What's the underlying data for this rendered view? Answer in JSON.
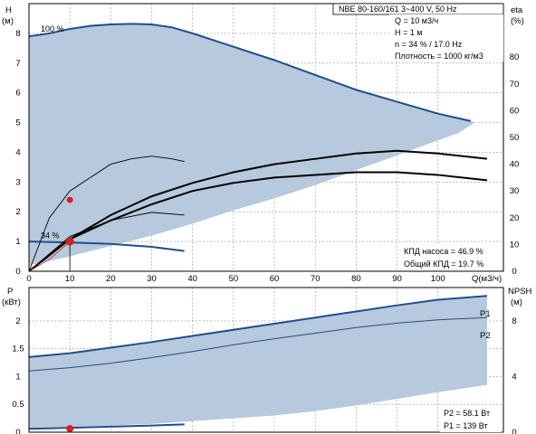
{
  "chart_data": [
    {
      "type": "line",
      "panel": "top",
      "y_label": "H",
      "y_unit": "(м)",
      "y2_label": "eta",
      "y2_unit": "(%)",
      "x_label": "Q(м3/ч)",
      "xlim": [
        0,
        116
      ],
      "ylim": [
        0,
        9
      ],
      "y2lim": [
        0,
        100
      ],
      "x_ticks": [
        "0",
        "10",
        "20",
        "30",
        "40",
        "50",
        "60",
        "70",
        "80",
        "90",
        "100"
      ],
      "x_tick_values": [
        0,
        10,
        20,
        30,
        40,
        50,
        60,
        70,
        80,
        90,
        100
      ],
      "y_ticks": [
        "0",
        "1",
        "2",
        "3",
        "4",
        "5",
        "6",
        "7",
        "8"
      ],
      "y_tick_values": [
        0,
        1,
        2,
        3,
        4,
        5,
        6,
        7,
        8
      ],
      "y2_ticks": [
        "0",
        "10",
        "20",
        "30",
        "40",
        "50",
        "60",
        "70",
        "80"
      ],
      "y2_tick_values": [
        0,
        10,
        20,
        30,
        40,
        50,
        60,
        70,
        80
      ],
      "grid": true,
      "envelope": {
        "upper": [
          [
            0,
            7.9
          ],
          [
            5,
            8.0
          ],
          [
            10,
            8.15
          ],
          [
            15,
            8.25
          ],
          [
            20,
            8.3
          ],
          [
            25,
            8.32
          ],
          [
            30,
            8.3
          ],
          [
            35,
            8.2
          ],
          [
            40,
            8.0
          ],
          [
            50,
            7.55
          ],
          [
            60,
            7.1
          ],
          [
            70,
            6.6
          ],
          [
            80,
            6.1
          ],
          [
            90,
            5.7
          ],
          [
            100,
            5.3
          ],
          [
            108,
            5.05
          ]
        ],
        "lower": [
          [
            109,
            5.0
          ],
          [
            105,
            4.65
          ],
          [
            100,
            4.4
          ],
          [
            90,
            3.9
          ],
          [
            80,
            3.4
          ],
          [
            70,
            2.9
          ],
          [
            60,
            2.45
          ],
          [
            50,
            2.05
          ],
          [
            40,
            1.6
          ],
          [
            30,
            1.2
          ],
          [
            20,
            0.85
          ],
          [
            10,
            0.5
          ],
          [
            5,
            0.35
          ],
          [
            0,
            0.2
          ]
        ]
      },
      "series": [
        {
          "name": "100 %",
          "points": [
            [
              0,
              7.9
            ],
            [
              5,
              8.0
            ],
            [
              10,
              8.15
            ],
            [
              15,
              8.25
            ],
            [
              20,
              8.3
            ],
            [
              25,
              8.32
            ],
            [
              30,
              8.3
            ],
            [
              35,
              8.2
            ],
            [
              40,
              8.0
            ],
            [
              50,
              7.55
            ],
            [
              60,
              7.1
            ],
            [
              70,
              6.6
            ],
            [
              80,
              6.1
            ],
            [
              90,
              5.7
            ],
            [
              100,
              5.3
            ],
            [
              108,
              5.05
            ]
          ],
          "color": "#1f4e8c"
        },
        {
          "name": "34 %",
          "points": [
            [
              0,
              1.0
            ],
            [
              10,
              0.97
            ],
            [
              20,
              0.92
            ],
            [
              30,
              0.82
            ],
            [
              38,
              0.68
            ]
          ],
          "color": "#1f4e8c"
        },
        {
          "name": "",
          "axis": "y2",
          "points": [
            [
              0,
              0
            ],
            [
              5,
              20
            ],
            [
              10,
              30
            ],
            [
              15,
              35
            ],
            [
              20,
              40
            ],
            [
              25,
              42
            ],
            [
              30,
              43
            ],
            [
              35,
              42
            ],
            [
              38,
              41
            ]
          ],
          "color": "#000000"
        },
        {
          "name": "",
          "axis": "y2",
          "points": [
            [
              0,
              0
            ],
            [
              10,
              12
            ],
            [
              20,
              21
            ],
            [
              30,
              28
            ],
            [
              40,
              33
            ],
            [
              50,
              37
            ],
            [
              60,
              40
            ],
            [
              70,
              42
            ],
            [
              80,
              44
            ],
            [
              90,
              45
            ],
            [
              100,
              44
            ],
            [
              112,
              42
            ]
          ],
          "color": "#000000"
        },
        {
          "name": "",
          "axis": "y2",
          "points": [
            [
              0,
              0
            ],
            [
              10,
              13
            ],
            [
              20,
              19
            ],
            [
              30,
              22
            ],
            [
              38,
              21
            ]
          ],
          "color": "#000000"
        },
        {
          "name": "",
          "axis": "y2",
          "points": [
            [
              0,
              0
            ],
            [
              10,
              12
            ],
            [
              20,
              19
            ],
            [
              30,
              25
            ],
            [
              40,
              30
            ],
            [
              50,
              33
            ],
            [
              60,
              35
            ],
            [
              70,
              36
            ],
            [
              80,
              37
            ],
            [
              90,
              37
            ],
            [
              100,
              36
            ],
            [
              112,
              34
            ]
          ],
          "color": "#000000"
        }
      ],
      "operating_points": [
        {
          "q": 10,
          "h": 2.4,
          "color": "#d62020"
        },
        {
          "q": 10,
          "h": 1.0,
          "color": "#d62020"
        }
      ],
      "series_labels": [
        {
          "text": "100 %",
          "q": 2,
          "h": 8.0
        },
        {
          "text": "34 %",
          "q": 2,
          "h": 1.05
        }
      ],
      "annotations": {
        "header": "NBE 80-160/161    3~400 V, 50 Hz",
        "info": [
          "Q = 10 м3/ч",
          "H = 1 м",
          "n = 34 % / 17.0 Hz",
          "Плотность = 1000 кг/м3"
        ],
        "efficiency": [
          "КПД насоса = 46.9 %",
          "Общий КПД = 19.7 %"
        ]
      }
    },
    {
      "type": "line",
      "panel": "bottom",
      "y_label": "P",
      "y_unit": "(кВт)",
      "y2_label": "NPSH",
      "y2_unit": "(м)",
      "xlim": [
        0,
        116
      ],
      "ylim": [
        0,
        2.6
      ],
      "y2lim": [
        0,
        10.4
      ],
      "y_ticks": [
        "0",
        "0.5",
        "1",
        "1.5",
        "2"
      ],
      "y_tick_values": [
        0,
        0.5,
        1,
        1.5,
        2
      ],
      "y2_ticks": [
        "0",
        "4",
        "8"
      ],
      "y2_tick_values": [
        0,
        4,
        8
      ],
      "grid": true,
      "envelope": {
        "upper": [
          [
            0,
            1.35
          ],
          [
            10,
            1.42
          ],
          [
            20,
            1.52
          ],
          [
            30,
            1.62
          ],
          [
            40,
            1.73
          ],
          [
            50,
            1.84
          ],
          [
            60,
            1.95
          ],
          [
            70,
            2.06
          ],
          [
            80,
            2.17
          ],
          [
            90,
            2.28
          ],
          [
            100,
            2.38
          ],
          [
            112,
            2.45
          ]
        ],
        "lower": [
          [
            112,
            0.85
          ],
          [
            100,
            0.72
          ],
          [
            90,
            0.6
          ],
          [
            80,
            0.48
          ],
          [
            70,
            0.38
          ],
          [
            60,
            0.3
          ],
          [
            50,
            0.25
          ],
          [
            40,
            0.2
          ],
          [
            30,
            0.15
          ],
          [
            20,
            0.12
          ],
          [
            10,
            0.1
          ],
          [
            0,
            0.08
          ]
        ]
      },
      "series": [
        {
          "name": "P1",
          "points": [
            [
              0,
              1.35
            ],
            [
              10,
              1.42
            ],
            [
              20,
              1.52
            ],
            [
              30,
              1.62
            ],
            [
              40,
              1.73
            ],
            [
              50,
              1.84
            ],
            [
              60,
              1.95
            ],
            [
              70,
              2.06
            ],
            [
              80,
              2.17
            ],
            [
              90,
              2.28
            ],
            [
              100,
              2.38
            ],
            [
              112,
              2.45
            ]
          ],
          "color": "#1f4e8c"
        },
        {
          "name": "P2",
          "points": [
            [
              0,
              1.1
            ],
            [
              10,
              1.16
            ],
            [
              20,
              1.24
            ],
            [
              30,
              1.34
            ],
            [
              40,
              1.45
            ],
            [
              50,
              1.57
            ],
            [
              60,
              1.68
            ],
            [
              70,
              1.78
            ],
            [
              80,
              1.88
            ],
            [
              90,
              1.96
            ],
            [
              100,
              2.02
            ],
            [
              112,
              2.06
            ]
          ],
          "color": "#1f4e8c"
        },
        {
          "name": "",
          "points": [
            [
              0,
              0.06
            ],
            [
              10,
              0.08
            ],
            [
              20,
              0.1
            ],
            [
              30,
              0.12
            ],
            [
              38,
              0.14
            ]
          ],
          "color": "#1f4e8c"
        }
      ],
      "operating_points": [
        {
          "q": 10,
          "p": 0.08,
          "color": "#d62020"
        }
      ],
      "annotations": {
        "power": [
          "P2 = 58.1 Вт",
          "P1 = 139 Вт"
        ]
      }
    }
  ]
}
